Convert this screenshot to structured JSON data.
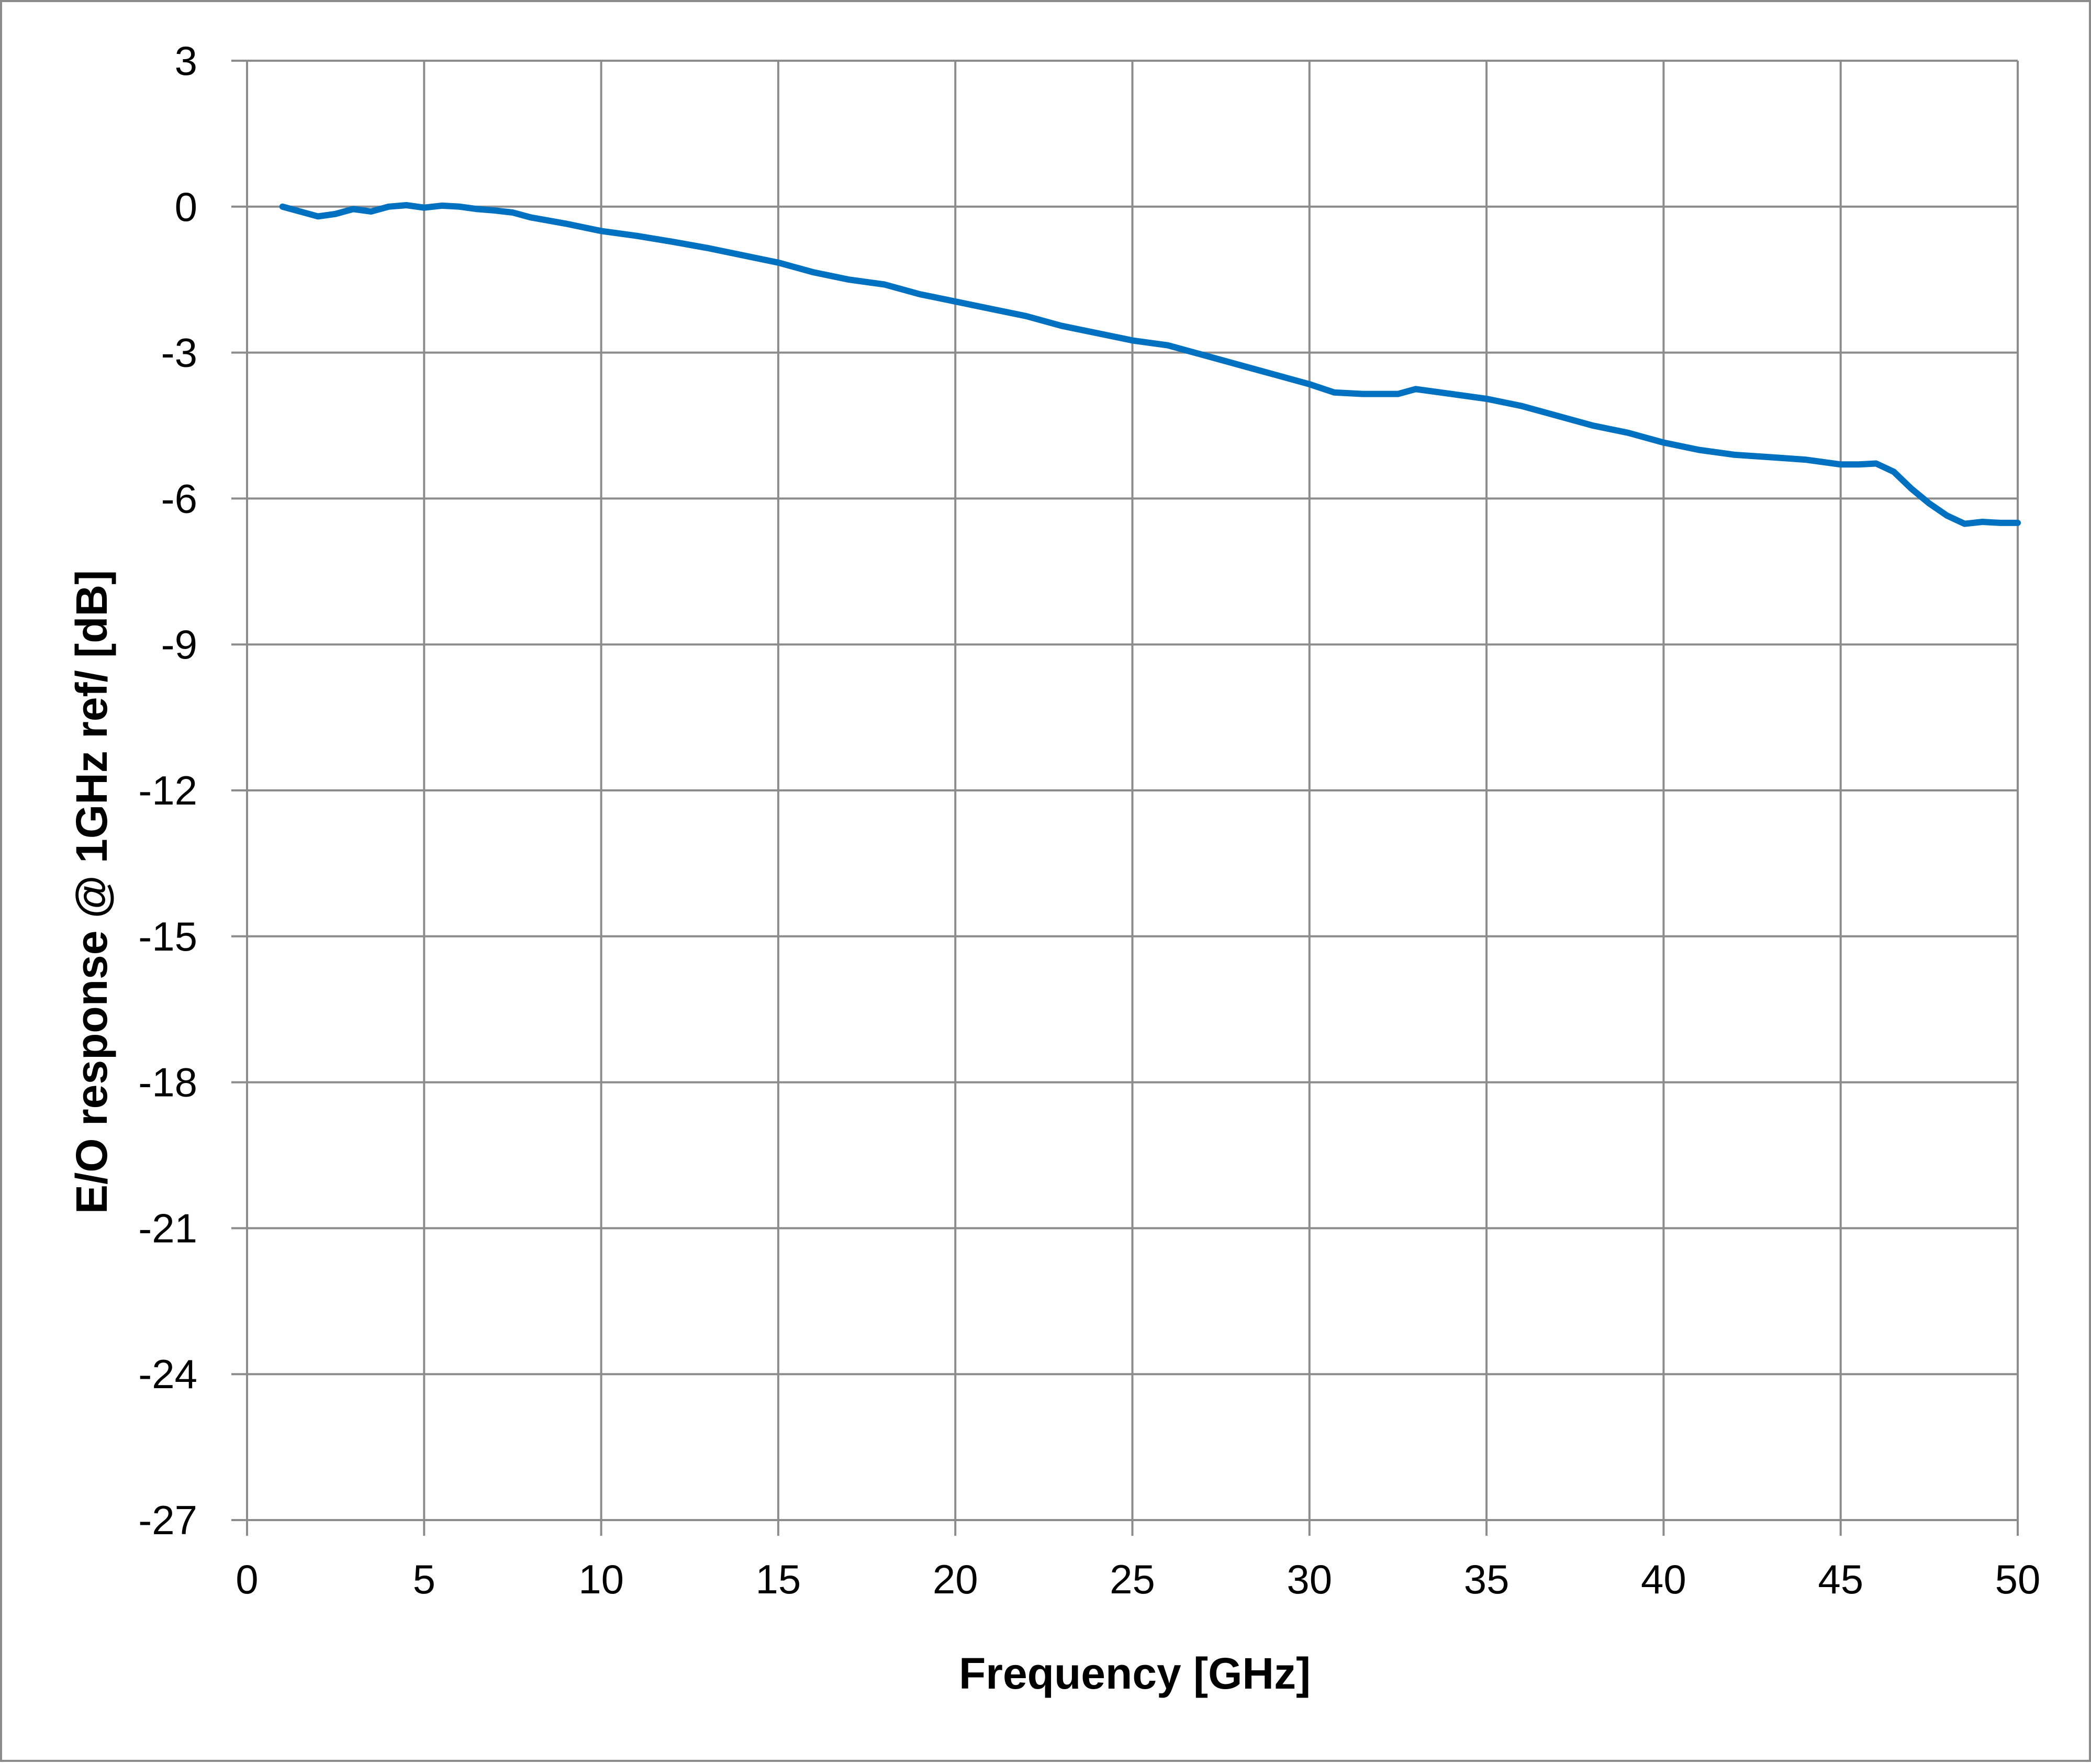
{
  "chart_data": {
    "type": "line",
    "title": "",
    "xlabel": "Frequency  [GHz]",
    "ylabel": "E/O response @ 1GHz ref/ [dB]",
    "xlim": [
      0,
      50
    ],
    "ylim": [
      -27,
      3
    ],
    "x_ticks": [
      0,
      5,
      10,
      15,
      20,
      25,
      30,
      35,
      40,
      45,
      50
    ],
    "y_ticks": [
      3,
      0,
      -3,
      -6,
      -9,
      -12,
      -15,
      -18,
      -21,
      -24,
      -27
    ],
    "grid": true,
    "legend": "none",
    "line_color": "#0070C0",
    "grid_color": "#8c8c8c",
    "series": [
      {
        "x": [
          1,
          1.5,
          2,
          2.5,
          3,
          3.5,
          4,
          4.5,
          5,
          5.5,
          6,
          6.5,
          7,
          7.5,
          8,
          9,
          10,
          11,
          12,
          13,
          14,
          15,
          16,
          17,
          18,
          19,
          20,
          21,
          22,
          23,
          24,
          25,
          26,
          27,
          28,
          29,
          30,
          30.7,
          31.5,
          32.5,
          33,
          34,
          35,
          36,
          37,
          38,
          39,
          40,
          41,
          42,
          43,
          44,
          45,
          45.5,
          46,
          46.5,
          47,
          47.5,
          48,
          48.5,
          49,
          49.5,
          50
        ],
        "y": [
          0,
          -0.1,
          -0.2,
          -0.15,
          -0.05,
          -0.1,
          0,
          0.03,
          -0.02,
          0.02,
          0,
          -0.05,
          -0.08,
          -0.12,
          -0.22,
          -0.35,
          -0.5,
          -0.6,
          -0.72,
          -0.85,
          -1.0,
          -1.15,
          -1.35,
          -1.5,
          -1.6,
          -1.8,
          -1.95,
          -2.1,
          -2.25,
          -2.45,
          -2.6,
          -2.75,
          -2.85,
          -3.05,
          -3.25,
          -3.45,
          -3.65,
          -3.82,
          -3.85,
          -3.85,
          -3.75,
          -3.85,
          -3.95,
          -4.1,
          -4.3,
          -4.5,
          -4.65,
          -4.85,
          -5.0,
          -5.1,
          -5.15,
          -5.2,
          -5.3,
          -5.3,
          -5.28,
          -5.45,
          -5.8,
          -6.1,
          -6.35,
          -6.52,
          -6.48,
          -6.5,
          -6.5
        ]
      }
    ]
  }
}
